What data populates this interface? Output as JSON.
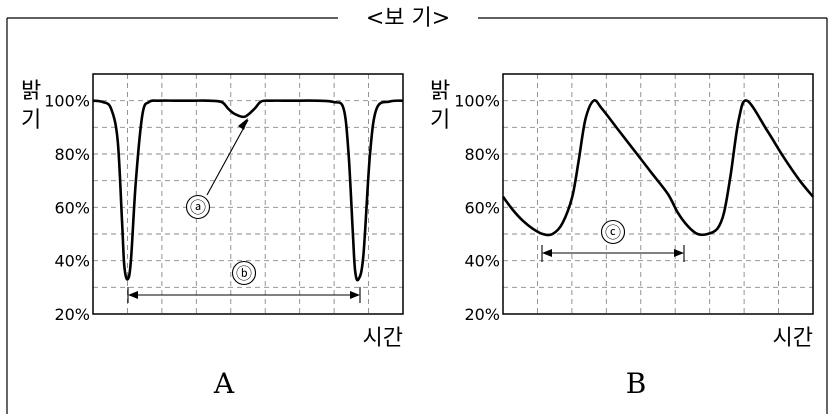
{
  "header": {
    "title": "<보 기>"
  },
  "chart_data": [
    {
      "type": "line",
      "panel_label": "A",
      "ylabel": "밝기",
      "xlabel": "시간",
      "ylim": [
        20,
        110
      ],
      "yticks": [
        "20%",
        "40%",
        "60%",
        "80%",
        "100%"
      ],
      "grid": true,
      "series": [
        {
          "x": [
            0,
            0.3,
            0.55,
            0.75,
            0.88,
            0.95,
            1.05,
            1.15,
            1.3,
            1.5,
            1.7,
            2.0,
            2.5,
            3.0,
            3.5,
            3.9,
            4.1,
            4.3,
            4.6,
            4.9,
            5.1,
            5.4,
            6.0,
            6.8,
            7.3,
            7.6,
            7.75,
            7.88,
            7.95,
            8.05,
            8.2,
            8.4,
            8.6,
            9.0,
            9.4
          ],
          "y": [
            100,
            99.5,
            97,
            85,
            55,
            38,
            33,
            40,
            70,
            95,
            99.5,
            100,
            100,
            100,
            100,
            99.5,
            97,
            95,
            94,
            97,
            99.7,
            100,
            100,
            100,
            99.5,
            97,
            80,
            50,
            36,
            33,
            42,
            80,
            97,
            99.7,
            100
          ]
        }
      ],
      "annotations": [
        {
          "label": "ⓐ",
          "target": "dip near 94%"
        },
        {
          "label": "ⓑ",
          "target": "interval between the two minima"
        }
      ]
    },
    {
      "type": "line",
      "panel_label": "B",
      "ylabel": "밝기",
      "xlabel": "시간",
      "ylim": [
        20,
        110
      ],
      "yticks": [
        "20%",
        "40%",
        "60%",
        "80%",
        "100%"
      ],
      "grid": true,
      "series": [
        {
          "x": [
            0,
            0.3,
            0.6,
            0.9,
            1.2,
            1.5,
            1.8,
            2.1,
            2.3,
            2.5,
            2.75,
            3.0,
            3.5,
            4.0,
            4.5,
            5.0,
            5.3,
            5.6,
            5.9,
            6.2,
            6.5,
            6.7,
            6.9,
            7.15,
            7.4,
            8.0,
            8.5,
            9.0,
            9.4
          ],
          "y": [
            64,
            59,
            55,
            52,
            50,
            50,
            54,
            64,
            78,
            93,
            100,
            97,
            89,
            81,
            73,
            65,
            58,
            53,
            50,
            50,
            52,
            58,
            72,
            93,
            100,
            89,
            79,
            70,
            64
          ]
        }
      ],
      "annotations": [
        {
          "label": "ⓒ",
          "target": "interval between the two minima"
        }
      ]
    }
  ]
}
